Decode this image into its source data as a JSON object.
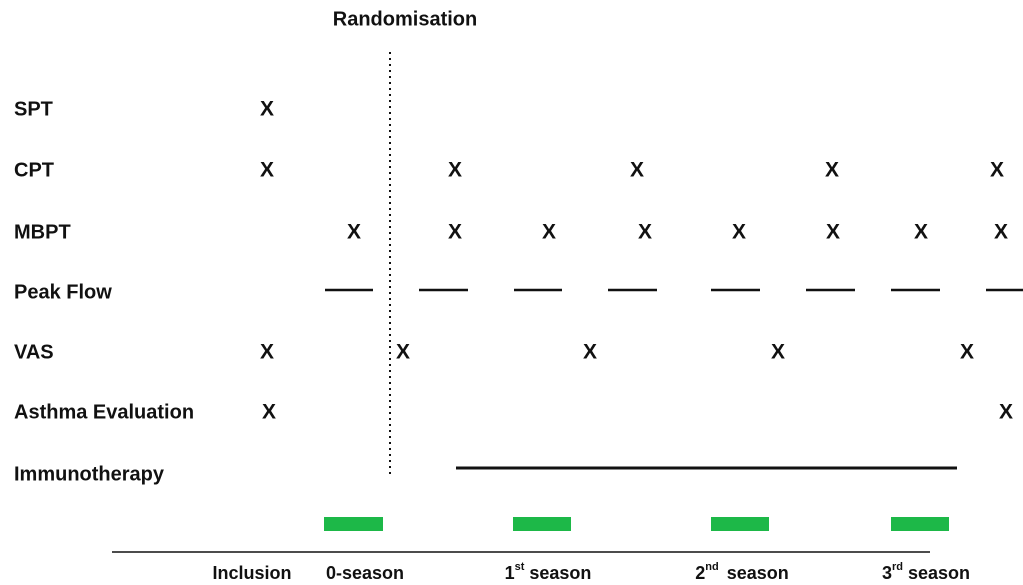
{
  "title": "Randomisation",
  "rows": [
    {
      "label": "SPT",
      "marks": [
        "X"
      ]
    },
    {
      "label": "CPT",
      "marks": [
        "X",
        "X",
        "X",
        "X",
        "X"
      ]
    },
    {
      "label": "MBPT",
      "marks": [
        "X",
        "X",
        "X",
        "X",
        "X",
        "X",
        "X",
        "X"
      ]
    },
    {
      "label": "Peak Flow",
      "marks": []
    },
    {
      "label": "VAS",
      "marks": [
        "X",
        "X",
        "X",
        "X",
        "X"
      ]
    },
    {
      "label": "Asthma Evaluation",
      "marks": [
        "X",
        "X"
      ]
    },
    {
      "label": "Immunotherapy",
      "marks": []
    }
  ],
  "timeline": [
    {
      "text": "Inclusion"
    },
    {
      "text": "0-season"
    },
    {
      "ordinal": "1",
      "suffix": "st",
      "rest": "season"
    },
    {
      "ordinal": "2",
      "suffix": "nd",
      "rest": "season"
    },
    {
      "ordinal": "3",
      "suffix": "rd",
      "rest": "season"
    }
  ]
}
